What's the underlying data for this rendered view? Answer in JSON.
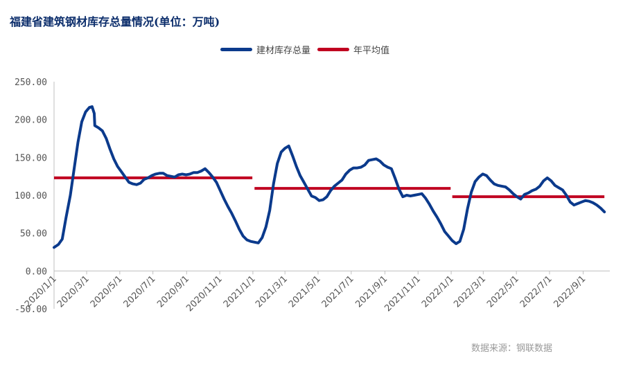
{
  "title": "福建省建筑钢材库存总量情况(单位：万吨)",
  "source": "数据来源：钢联数据",
  "legend": {
    "inventory_label": "建材库存总量",
    "average_label": "年平均值",
    "inventory_color": "#0b3a8c",
    "average_color": "#c00020"
  },
  "chart_data": {
    "type": "line",
    "title": "福建省建筑钢材库存总量情况(单位：万吨)",
    "ylim": [
      -50,
      250
    ],
    "yticks": [
      "-50.00",
      "0.00",
      "50.00",
      "100.00",
      "150.00",
      "200.00",
      "250.00"
    ],
    "xlim": [
      "2020-01-01",
      "2022-10-20"
    ],
    "xticks": [
      {
        "date": "2020-01-01",
        "label": "2020/1/1"
      },
      {
        "date": "2020-03-01",
        "label": "2020/3/1"
      },
      {
        "date": "2020-05-01",
        "label": "2020/5/1"
      },
      {
        "date": "2020-07-01",
        "label": "2020/7/1"
      },
      {
        "date": "2020-09-01",
        "label": "2020/9/1"
      },
      {
        "date": "2020-11-01",
        "label": "2020/11/1"
      },
      {
        "date": "2021-01-01",
        "label": "2021/1/1"
      },
      {
        "date": "2021-03-01",
        "label": "2021/3/1"
      },
      {
        "date": "2021-05-01",
        "label": "2021/5/1"
      },
      {
        "date": "2021-07-01",
        "label": "2021/7/1"
      },
      {
        "date": "2021-09-01",
        "label": "2021/9/1"
      },
      {
        "date": "2021-11-01",
        "label": "2021/11/1"
      },
      {
        "date": "2022-01-01",
        "label": "2022/1/1"
      },
      {
        "date": "2022-03-01",
        "label": "2022/3/1"
      },
      {
        "date": "2022-05-01",
        "label": "2022/5/1"
      },
      {
        "date": "2022-07-01",
        "label": "2022/7/1"
      },
      {
        "date": "2022-09-01",
        "label": "2022/9/1"
      }
    ],
    "series": [
      {
        "name": "建材库存总量",
        "points": [
          [
            "2020-01-01",
            31
          ],
          [
            "2020-01-09",
            35
          ],
          [
            "2020-01-16",
            42
          ],
          [
            "2020-01-23",
            70
          ],
          [
            "2020-01-31",
            100
          ],
          [
            "2020-02-07",
            135
          ],
          [
            "2020-02-14",
            170
          ],
          [
            "2020-02-21",
            197
          ],
          [
            "2020-02-28",
            210
          ],
          [
            "2020-03-06",
            216
          ],
          [
            "2020-03-11",
            217
          ],
          [
            "2020-03-15",
            208
          ],
          [
            "2020-03-16",
            192
          ],
          [
            "2020-03-23",
            189
          ],
          [
            "2020-03-30",
            185
          ],
          [
            "2020-04-06",
            175
          ],
          [
            "2020-04-13",
            161
          ],
          [
            "2020-04-20",
            148
          ],
          [
            "2020-04-27",
            138
          ],
          [
            "2020-05-04",
            131
          ],
          [
            "2020-05-11",
            124
          ],
          [
            "2020-05-18",
            117
          ],
          [
            "2020-05-25",
            115
          ],
          [
            "2020-06-01",
            114
          ],
          [
            "2020-06-08",
            116
          ],
          [
            "2020-06-15",
            121
          ],
          [
            "2020-06-22",
            123
          ],
          [
            "2020-06-29",
            126
          ],
          [
            "2020-07-06",
            128
          ],
          [
            "2020-07-13",
            129
          ],
          [
            "2020-07-20",
            129
          ],
          [
            "2020-07-27",
            126
          ],
          [
            "2020-08-03",
            125
          ],
          [
            "2020-08-10",
            124
          ],
          [
            "2020-08-17",
            127
          ],
          [
            "2020-08-24",
            128
          ],
          [
            "2020-08-31",
            127
          ],
          [
            "2020-09-07",
            128
          ],
          [
            "2020-09-14",
            130
          ],
          [
            "2020-09-21",
            130
          ],
          [
            "2020-09-28",
            132
          ],
          [
            "2020-10-05",
            135
          ],
          [
            "2020-10-12",
            130
          ],
          [
            "2020-10-19",
            124
          ],
          [
            "2020-10-26",
            117
          ],
          [
            "2020-11-02",
            106
          ],
          [
            "2020-11-09",
            95
          ],
          [
            "2020-11-16",
            85
          ],
          [
            "2020-11-23",
            76
          ],
          [
            "2020-11-30",
            66
          ],
          [
            "2020-12-07",
            55
          ],
          [
            "2020-12-14",
            46
          ],
          [
            "2020-12-21",
            41
          ],
          [
            "2020-12-28",
            39
          ],
          [
            "2021-01-04",
            38
          ],
          [
            "2021-01-11",
            37
          ],
          [
            "2021-01-18",
            44
          ],
          [
            "2021-01-25",
            58
          ],
          [
            "2021-02-01",
            80
          ],
          [
            "2021-02-08",
            115
          ],
          [
            "2021-02-15",
            142
          ],
          [
            "2021-02-22",
            157
          ],
          [
            "2021-03-01",
            162
          ],
          [
            "2021-03-08",
            165
          ],
          [
            "2021-03-15",
            152
          ],
          [
            "2021-03-22",
            138
          ],
          [
            "2021-03-29",
            126
          ],
          [
            "2021-04-05",
            117
          ],
          [
            "2021-04-12",
            108
          ],
          [
            "2021-04-19",
            99
          ],
          [
            "2021-04-26",
            97
          ],
          [
            "2021-05-03",
            93
          ],
          [
            "2021-05-10",
            94
          ],
          [
            "2021-05-17",
            98
          ],
          [
            "2021-05-24",
            106
          ],
          [
            "2021-05-31",
            112
          ],
          [
            "2021-06-07",
            116
          ],
          [
            "2021-06-14",
            120
          ],
          [
            "2021-06-21",
            128
          ],
          [
            "2021-06-28",
            133
          ],
          [
            "2021-07-05",
            136
          ],
          [
            "2021-07-12",
            136
          ],
          [
            "2021-07-19",
            137
          ],
          [
            "2021-07-26",
            140
          ],
          [
            "2021-08-02",
            146
          ],
          [
            "2021-08-09",
            147
          ],
          [
            "2021-08-16",
            148
          ],
          [
            "2021-08-23",
            145
          ],
          [
            "2021-08-30",
            140
          ],
          [
            "2021-09-06",
            137
          ],
          [
            "2021-09-13",
            135
          ],
          [
            "2021-09-20",
            122
          ],
          [
            "2021-09-27",
            108
          ],
          [
            "2021-10-04",
            98
          ],
          [
            "2021-10-11",
            100
          ],
          [
            "2021-10-18",
            99
          ],
          [
            "2021-10-25",
            100
          ],
          [
            "2021-11-01",
            101
          ],
          [
            "2021-11-08",
            102
          ],
          [
            "2021-11-15",
            96
          ],
          [
            "2021-11-22",
            88
          ],
          [
            "2021-11-29",
            79
          ],
          [
            "2021-12-06",
            71
          ],
          [
            "2021-12-13",
            62
          ],
          [
            "2021-12-20",
            52
          ],
          [
            "2021-12-27",
            46
          ],
          [
            "2022-01-03",
            40
          ],
          [
            "2022-01-10",
            36
          ],
          [
            "2022-01-17",
            39
          ],
          [
            "2022-01-24",
            55
          ],
          [
            "2022-01-31",
            82
          ],
          [
            "2022-02-07",
            104
          ],
          [
            "2022-02-14",
            118
          ],
          [
            "2022-02-21",
            124
          ],
          [
            "2022-02-28",
            128
          ],
          [
            "2022-03-07",
            126
          ],
          [
            "2022-03-14",
            120
          ],
          [
            "2022-03-21",
            115
          ],
          [
            "2022-03-28",
            113
          ],
          [
            "2022-04-04",
            112
          ],
          [
            "2022-04-11",
            111
          ],
          [
            "2022-04-18",
            107
          ],
          [
            "2022-04-25",
            102
          ],
          [
            "2022-05-02",
            98
          ],
          [
            "2022-05-09",
            95
          ],
          [
            "2022-05-16",
            101
          ],
          [
            "2022-05-23",
            103
          ],
          [
            "2022-05-30",
            106
          ],
          [
            "2022-06-06",
            108
          ],
          [
            "2022-06-13",
            112
          ],
          [
            "2022-06-20",
            119
          ],
          [
            "2022-06-27",
            123
          ],
          [
            "2022-07-04",
            119
          ],
          [
            "2022-07-11",
            113
          ],
          [
            "2022-07-18",
            110
          ],
          [
            "2022-07-25",
            107
          ],
          [
            "2022-08-01",
            100
          ],
          [
            "2022-08-08",
            91
          ],
          [
            "2022-08-15",
            87
          ],
          [
            "2022-08-22",
            89
          ],
          [
            "2022-08-29",
            91
          ],
          [
            "2022-09-05",
            93
          ],
          [
            "2022-09-12",
            92
          ],
          [
            "2022-09-19",
            90
          ],
          [
            "2022-09-26",
            87
          ],
          [
            "2022-10-03",
            83
          ],
          [
            "2022-10-10",
            78
          ]
        ]
      },
      {
        "name": "年平均值",
        "segments": [
          {
            "start": "2020-01-01",
            "end": "2020-12-31",
            "value": 123
          },
          {
            "start": "2021-01-04",
            "end": "2021-12-31",
            "value": 109
          },
          {
            "start": "2022-01-03",
            "end": "2022-10-10",
            "value": 98
          }
        ]
      }
    ]
  }
}
